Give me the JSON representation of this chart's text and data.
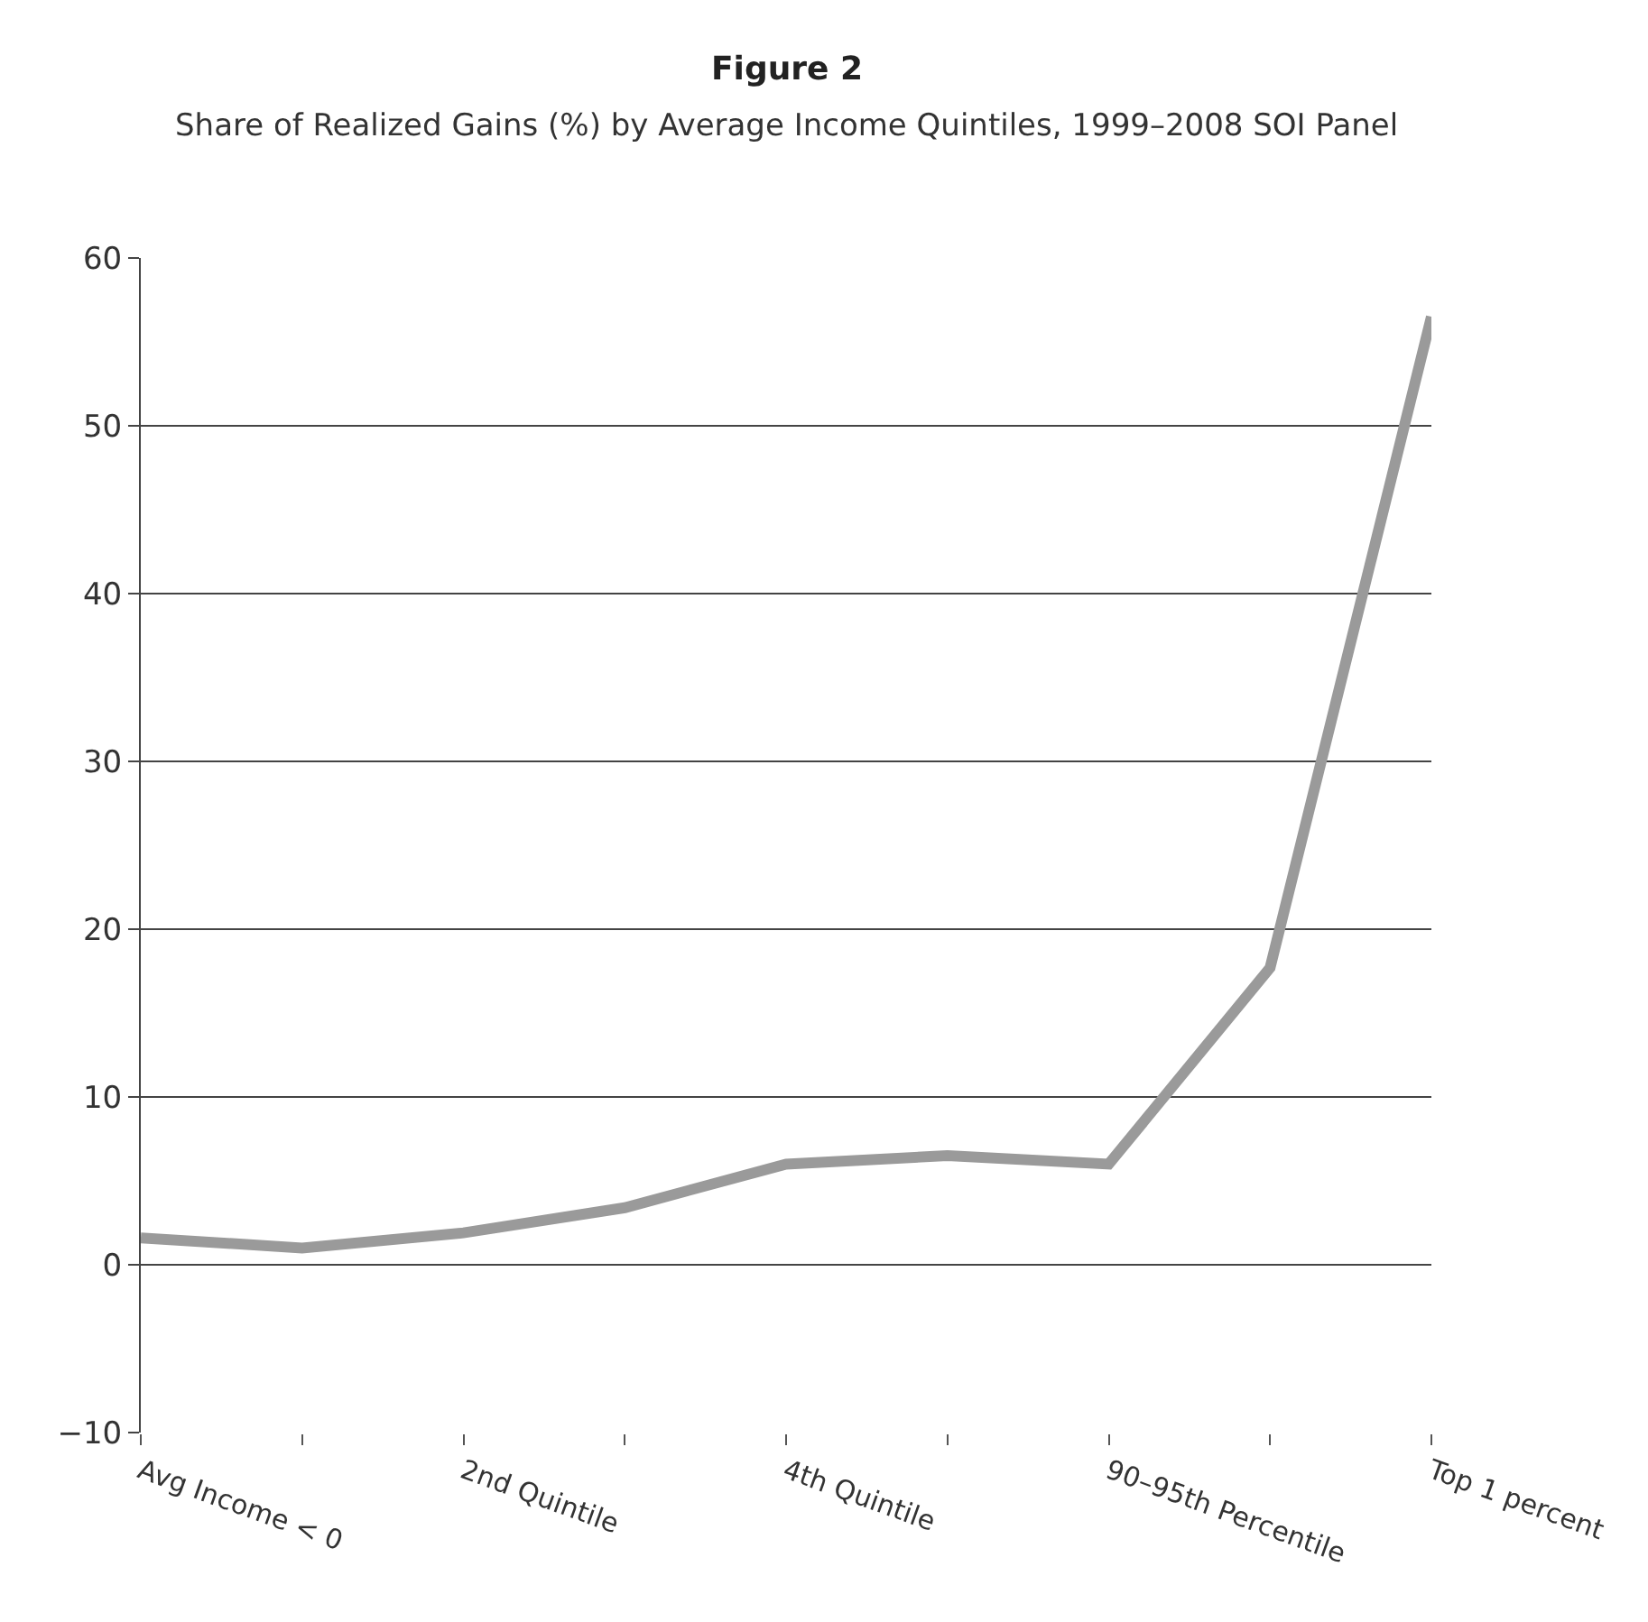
{
  "chart_data": {
    "type": "line",
    "title": "Figure 2",
    "subtitle": "Share of Realized Gains (%) by Average Income Quintiles, 1999–2008 SOI Panel",
    "categories": [
      "Avg Income < 0",
      null,
      "2nd Quintile",
      null,
      "4th Quintile",
      null,
      "90–95th Percentile",
      null,
      "Top 1 percent"
    ],
    "series": [
      {
        "color": "#9a9a9a",
        "values": [
          1.6,
          1.0,
          1.9,
          3.4,
          6.0,
          6.5,
          6.0,
          17.7,
          56.5
        ]
      }
    ],
    "ylim": [
      -10,
      60
    ],
    "yticks": [
      -10,
      0,
      10,
      20,
      30,
      40,
      50,
      60
    ],
    "grid": "y",
    "marker": "none",
    "line_style": "solid"
  }
}
